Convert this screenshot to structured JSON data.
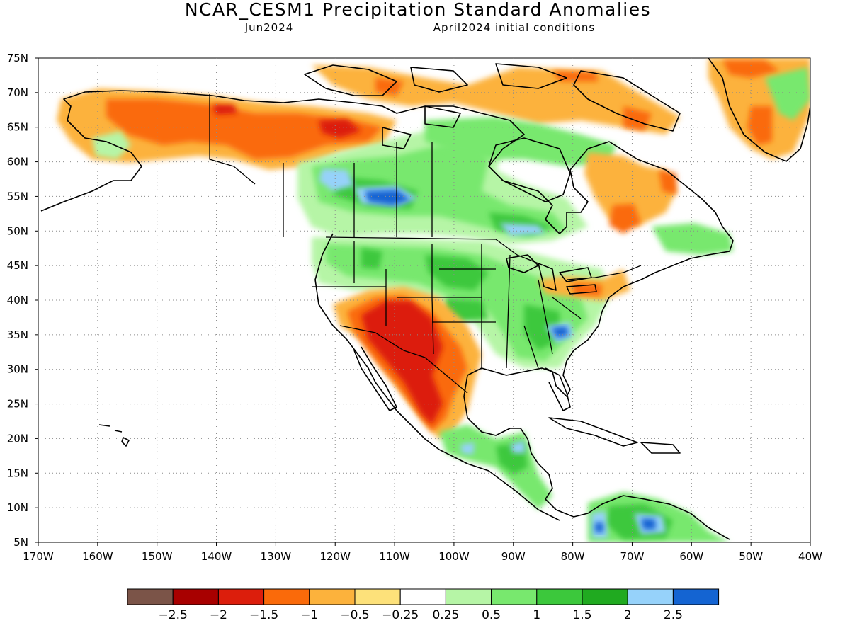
{
  "title": "NCAR_CESM1 Precipitation Standard Anomalies",
  "subtitle_left": "Jun2024",
  "subtitle_right": "April2024 initial conditions",
  "map": {
    "lon_range": [
      -170,
      -40
    ],
    "lat_range": [
      5,
      75
    ],
    "gridlines": "dotted",
    "lat_labels": [
      "75N",
      "70N",
      "65N",
      "60N",
      "55N",
      "50N",
      "45N",
      "40N",
      "35N",
      "30N",
      "25N",
      "20N",
      "15N",
      "10N",
      "5N"
    ],
    "lon_labels": [
      "170W",
      "160W",
      "150W",
      "140W",
      "130W",
      "120W",
      "110W",
      "100W",
      "90W",
      "80W",
      "70W",
      "60W",
      "50W",
      "40W"
    ]
  },
  "colorbar": {
    "colors": [
      "#7b5448",
      "#a80000",
      "#dc1e0c",
      "#fa6a0a",
      "#fcb23c",
      "#fde17a",
      "#ffffff",
      "#b6f5a6",
      "#78e86e",
      "#3cc83c",
      "#20aa20",
      "#96d2fa",
      "#1464d2"
    ],
    "labels": [
      "-2.5",
      "-2",
      "-1.5",
      "-1",
      "-0.5",
      "-0.25",
      "0.25",
      "0.5",
      "1",
      "1.5",
      "2",
      "2.5"
    ]
  },
  "colors": {
    "land_outline": "#000000",
    "background": "#ffffff"
  }
}
